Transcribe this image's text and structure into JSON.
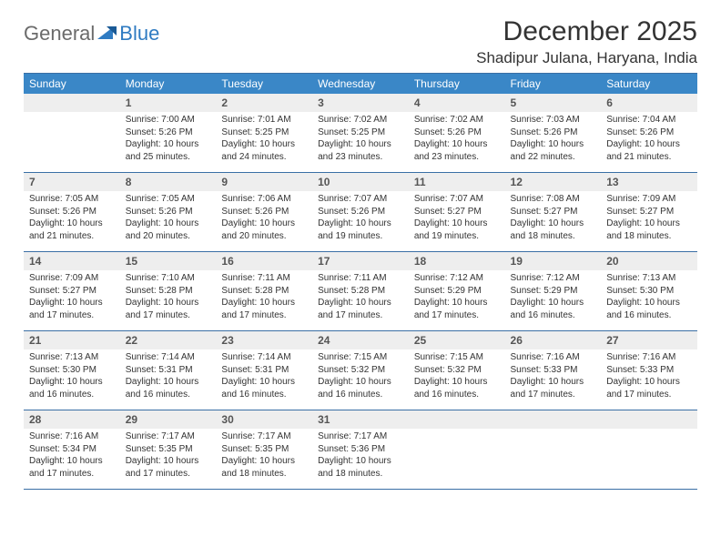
{
  "logo": {
    "text1": "General",
    "text2": "Blue"
  },
  "title": "December 2025",
  "location": "Shadipur Julana, Haryana, India",
  "colors": {
    "header_bg": "#3a87c7",
    "header_text": "#ffffff",
    "daynum_bg": "#eeeeee",
    "rule": "#3a6fa5",
    "logo_gray": "#6b6b6b",
    "logo_blue": "#2f7bc2"
  },
  "weekdays": [
    "Sunday",
    "Monday",
    "Tuesday",
    "Wednesday",
    "Thursday",
    "Friday",
    "Saturday"
  ],
  "weeks": [
    {
      "nums": [
        "",
        "1",
        "2",
        "3",
        "4",
        "5",
        "6"
      ],
      "cells": [
        null,
        {
          "sunrise": "7:00 AM",
          "sunset": "5:26 PM",
          "daylight": "10 hours and 25 minutes."
        },
        {
          "sunrise": "7:01 AM",
          "sunset": "5:25 PM",
          "daylight": "10 hours and 24 minutes."
        },
        {
          "sunrise": "7:02 AM",
          "sunset": "5:25 PM",
          "daylight": "10 hours and 23 minutes."
        },
        {
          "sunrise": "7:02 AM",
          "sunset": "5:26 PM",
          "daylight": "10 hours and 23 minutes."
        },
        {
          "sunrise": "7:03 AM",
          "sunset": "5:26 PM",
          "daylight": "10 hours and 22 minutes."
        },
        {
          "sunrise": "7:04 AM",
          "sunset": "5:26 PM",
          "daylight": "10 hours and 21 minutes."
        }
      ]
    },
    {
      "nums": [
        "7",
        "8",
        "9",
        "10",
        "11",
        "12",
        "13"
      ],
      "cells": [
        {
          "sunrise": "7:05 AM",
          "sunset": "5:26 PM",
          "daylight": "10 hours and 21 minutes."
        },
        {
          "sunrise": "7:05 AM",
          "sunset": "5:26 PM",
          "daylight": "10 hours and 20 minutes."
        },
        {
          "sunrise": "7:06 AM",
          "sunset": "5:26 PM",
          "daylight": "10 hours and 20 minutes."
        },
        {
          "sunrise": "7:07 AM",
          "sunset": "5:26 PM",
          "daylight": "10 hours and 19 minutes."
        },
        {
          "sunrise": "7:07 AM",
          "sunset": "5:27 PM",
          "daylight": "10 hours and 19 minutes."
        },
        {
          "sunrise": "7:08 AM",
          "sunset": "5:27 PM",
          "daylight": "10 hours and 18 minutes."
        },
        {
          "sunrise": "7:09 AM",
          "sunset": "5:27 PM",
          "daylight": "10 hours and 18 minutes."
        }
      ]
    },
    {
      "nums": [
        "14",
        "15",
        "16",
        "17",
        "18",
        "19",
        "20"
      ],
      "cells": [
        {
          "sunrise": "7:09 AM",
          "sunset": "5:27 PM",
          "daylight": "10 hours and 17 minutes."
        },
        {
          "sunrise": "7:10 AM",
          "sunset": "5:28 PM",
          "daylight": "10 hours and 17 minutes."
        },
        {
          "sunrise": "7:11 AM",
          "sunset": "5:28 PM",
          "daylight": "10 hours and 17 minutes."
        },
        {
          "sunrise": "7:11 AM",
          "sunset": "5:28 PM",
          "daylight": "10 hours and 17 minutes."
        },
        {
          "sunrise": "7:12 AM",
          "sunset": "5:29 PM",
          "daylight": "10 hours and 17 minutes."
        },
        {
          "sunrise": "7:12 AM",
          "sunset": "5:29 PM",
          "daylight": "10 hours and 16 minutes."
        },
        {
          "sunrise": "7:13 AM",
          "sunset": "5:30 PM",
          "daylight": "10 hours and 16 minutes."
        }
      ]
    },
    {
      "nums": [
        "21",
        "22",
        "23",
        "24",
        "25",
        "26",
        "27"
      ],
      "cells": [
        {
          "sunrise": "7:13 AM",
          "sunset": "5:30 PM",
          "daylight": "10 hours and 16 minutes."
        },
        {
          "sunrise": "7:14 AM",
          "sunset": "5:31 PM",
          "daylight": "10 hours and 16 minutes."
        },
        {
          "sunrise": "7:14 AM",
          "sunset": "5:31 PM",
          "daylight": "10 hours and 16 minutes."
        },
        {
          "sunrise": "7:15 AM",
          "sunset": "5:32 PM",
          "daylight": "10 hours and 16 minutes."
        },
        {
          "sunrise": "7:15 AM",
          "sunset": "5:32 PM",
          "daylight": "10 hours and 16 minutes."
        },
        {
          "sunrise": "7:16 AM",
          "sunset": "5:33 PM",
          "daylight": "10 hours and 17 minutes."
        },
        {
          "sunrise": "7:16 AM",
          "sunset": "5:33 PM",
          "daylight": "10 hours and 17 minutes."
        }
      ]
    },
    {
      "nums": [
        "28",
        "29",
        "30",
        "31",
        "",
        "",
        ""
      ],
      "cells": [
        {
          "sunrise": "7:16 AM",
          "sunset": "5:34 PM",
          "daylight": "10 hours and 17 minutes."
        },
        {
          "sunrise": "7:17 AM",
          "sunset": "5:35 PM",
          "daylight": "10 hours and 17 minutes."
        },
        {
          "sunrise": "7:17 AM",
          "sunset": "5:35 PM",
          "daylight": "10 hours and 18 minutes."
        },
        {
          "sunrise": "7:17 AM",
          "sunset": "5:36 PM",
          "daylight": "10 hours and 18 minutes."
        },
        null,
        null,
        null
      ]
    }
  ],
  "labels": {
    "sunrise": "Sunrise:",
    "sunset": "Sunset:",
    "daylight": "Daylight:"
  }
}
